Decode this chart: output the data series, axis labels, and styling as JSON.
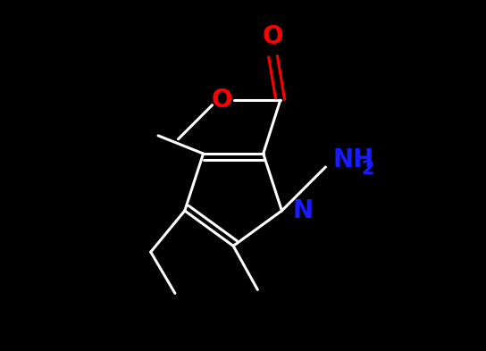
{
  "background_color": "#000000",
  "bond_color": "#ffffff",
  "N_color": "#1a1aff",
  "O_color": "#ff0000",
  "NH2_color": "#1a1aff",
  "fig_width": 5.44,
  "fig_height": 3.93,
  "dpi": 100,
  "xlim": [
    0,
    10
  ],
  "ylim": [
    0,
    7.2
  ],
  "lw": 2.2,
  "font_size": 20
}
